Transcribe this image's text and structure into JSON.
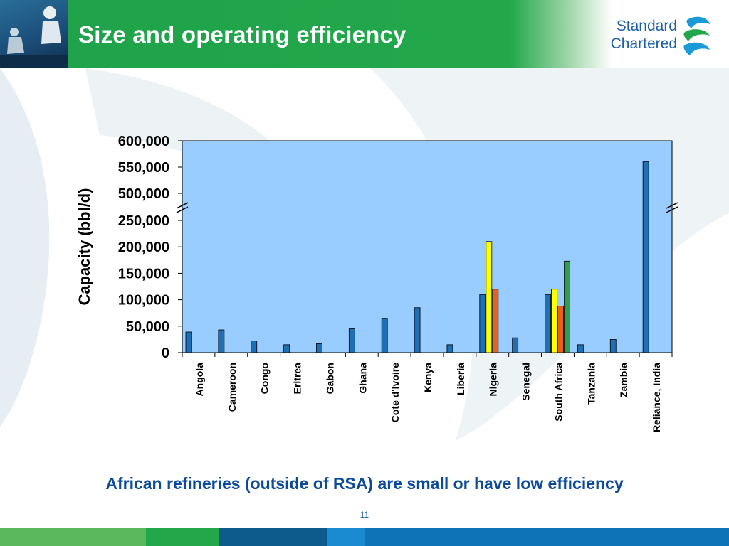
{
  "slide": {
    "title": "Size and operating efficiency",
    "subtitle": "African refineries (outside of RSA) are small or have low efficiency",
    "page_number": "11"
  },
  "logo": {
    "line1": "Standard",
    "line2": "Chartered",
    "color": "#1f5fa6"
  },
  "colors": {
    "header_green": "#22a84b",
    "plot_bg": "#99ccff",
    "bar_blue": "#1f6fb5",
    "bar_yellow": "#ffff00",
    "bar_orange": "#e8601c",
    "bar_green": "#2e9e4f",
    "subtitle_blue": "#0c4a9c",
    "footer": [
      "#5cb85c",
      "#22a84b",
      "#0d5a8c",
      "#1a8bd0",
      "#0e73b7"
    ]
  },
  "chart_data": {
    "type": "bar",
    "title": "",
    "xlabel": "",
    "ylabel": "Capacity (bbl/d)",
    "ylim": [
      0,
      600000
    ],
    "axis_break": [
      250000,
      500000
    ],
    "ytick_labels": [
      "0",
      "50,000",
      "100,000",
      "150,000",
      "200,000",
      "250,000",
      "500,000",
      "550,000",
      "600,000"
    ],
    "ytick_values": [
      0,
      50000,
      100000,
      150000,
      200000,
      250000,
      500000,
      550000,
      600000
    ],
    "categories": [
      "Angola",
      "Cameroon",
      "Congo",
      "Eritrea",
      "Gabon",
      "Ghana",
      "Cote d'Ivoire",
      "Kenya",
      "Liberia",
      "Nigeria",
      "Senegal",
      "South Africa",
      "Tanzania",
      "Zambia",
      "Reliance, India"
    ],
    "series": [
      {
        "color": "#1f6fb5",
        "values": [
          39000,
          43000,
          22000,
          15000,
          17000,
          45000,
          65000,
          85000,
          15000,
          110000,
          28000,
          110000,
          15000,
          25000,
          560000
        ]
      },
      {
        "color": "#ffff00",
        "values": [
          null,
          null,
          null,
          null,
          null,
          null,
          null,
          null,
          null,
          210000,
          null,
          120000,
          null,
          null,
          null
        ]
      },
      {
        "color": "#e8601c",
        "values": [
          null,
          null,
          null,
          null,
          null,
          null,
          null,
          null,
          null,
          120000,
          null,
          88000,
          null,
          null,
          null
        ]
      },
      {
        "color": "#2e9e4f",
        "values": [
          null,
          null,
          null,
          null,
          null,
          null,
          null,
          null,
          null,
          null,
          null,
          173000,
          null,
          null,
          null
        ]
      }
    ],
    "grid": false,
    "legend": "none"
  }
}
